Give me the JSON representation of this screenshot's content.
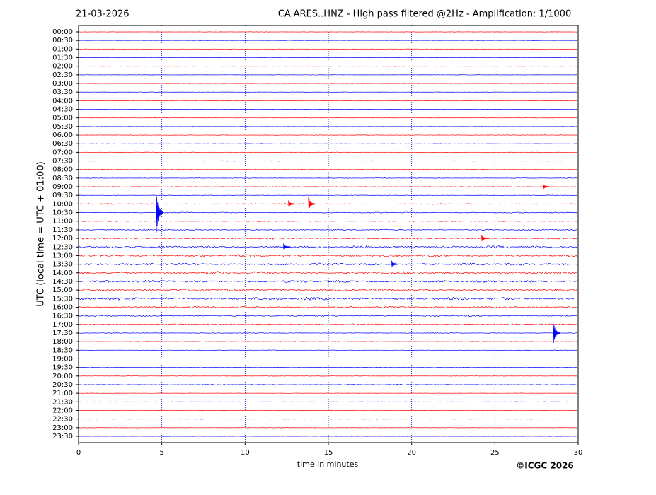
{
  "chart_data": {
    "type": "helicorder",
    "title_left": "21-03-2026",
    "title": "CA.ARES..HNZ - High pass filtered @2Hz - Amplification: 1/1000",
    "ylabel": "UTC (local time = UTC + 01:00)",
    "xlabel": "time in minutes",
    "copyright": "©ICGC 2026",
    "categories": [
      "00:00",
      "00:30",
      "01:00",
      "01:30",
      "02:00",
      "02:30",
      "03:00",
      "03:30",
      "04:00",
      "04:30",
      "05:00",
      "05:30",
      "06:00",
      "06:30",
      "07:00",
      "07:30",
      "08:00",
      "08:30",
      "09:00",
      "09:30",
      "10:00",
      "10:30",
      "11:00",
      "11:30",
      "12:00",
      "12:30",
      "13:00",
      "13:30",
      "14:00",
      "14:30",
      "15:00",
      "15:30",
      "16:00",
      "16:30",
      "17:00",
      "17:30",
      "18:00",
      "18:30",
      "19:00",
      "19:30",
      "20:00",
      "20:30",
      "21:00",
      "21:30",
      "22:00",
      "22:30",
      "23:00",
      "23:30"
    ],
    "noise_level": [
      0.02,
      0.02,
      0.02,
      0.02,
      0.02,
      0.02,
      0.02,
      0.02,
      0.02,
      0.02,
      0.02,
      0.02,
      0.03,
      0.03,
      0.03,
      0.03,
      0.03,
      0.03,
      0.04,
      0.03,
      0.06,
      0.06,
      0.05,
      0.07,
      0.1,
      0.15,
      0.15,
      0.14,
      0.17,
      0.14,
      0.15,
      0.18,
      0.12,
      0.09,
      0.07,
      0.04,
      0.03,
      0.03,
      0.02,
      0.03,
      0.02,
      0.04,
      0.02,
      0.02,
      0.02,
      0.02,
      0.02,
      0.02
    ],
    "event_rows": [
      21,
      35,
      20,
      20,
      24,
      18,
      25,
      27
    ],
    "event_x": [
      4.65,
      28.5,
      12.6,
      13.8,
      24.2,
      27.9,
      12.3,
      18.8
    ],
    "event_amplitude": [
      2.8,
      1.4,
      0.4,
      0.8,
      0.4,
      0.3,
      0.4,
      0.4
    ],
    "colors": [
      "#ff0000",
      "#0000ff"
    ],
    "xlim": [
      0,
      30
    ],
    "xticks": [
      0,
      5,
      10,
      15,
      20,
      25,
      30
    ],
    "ylim": [
      -0.74,
      47.74
    ],
    "grid": true
  }
}
